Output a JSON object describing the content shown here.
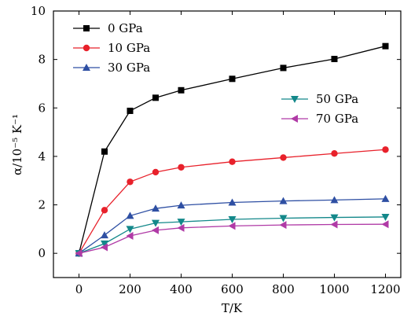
{
  "chart_data": {
    "type": "line",
    "xlabel": "T/K",
    "ylabel": "α/10⁻⁵ K⁻¹",
    "xlim": [
      -100,
      1260
    ],
    "ylim": [
      -1,
      10
    ],
    "xticks": [
      0,
      200,
      400,
      600,
      800,
      1000,
      1200
    ],
    "yticks": [
      0,
      2,
      4,
      6,
      8,
      10
    ],
    "grid": false,
    "series": [
      {
        "name": "0 GPa",
        "color": "#000000",
        "marker": "square",
        "x": [
          0,
          100,
          200,
          300,
          400,
          600,
          800,
          1000,
          1200
        ],
        "y": [
          0.0,
          4.2,
          5.88,
          6.42,
          6.73,
          7.2,
          7.65,
          8.02,
          8.55
        ]
      },
      {
        "name": "10 GPa",
        "color": "#e8212b",
        "marker": "circle",
        "x": [
          0,
          100,
          200,
          300,
          400,
          600,
          800,
          1000,
          1200
        ],
        "y": [
          0.0,
          1.78,
          2.95,
          3.35,
          3.55,
          3.78,
          3.95,
          4.12,
          4.28
        ]
      },
      {
        "name": "30 GPa",
        "color": "#2e4fa3",
        "marker": "triangle-up",
        "x": [
          0,
          100,
          200,
          300,
          400,
          600,
          800,
          1000,
          1200
        ],
        "y": [
          0.0,
          0.75,
          1.55,
          1.85,
          1.98,
          2.1,
          2.16,
          2.2,
          2.25
        ]
      },
      {
        "name": "50 GPa",
        "color": "#13888a",
        "marker": "triangle-down",
        "x": [
          0,
          100,
          200,
          300,
          400,
          600,
          800,
          1000,
          1200
        ],
        "y": [
          0.0,
          0.4,
          1.0,
          1.25,
          1.3,
          1.4,
          1.45,
          1.48,
          1.5
        ]
      },
      {
        "name": "70 GPa",
        "color": "#b03aa6",
        "marker": "triangle-left",
        "x": [
          0,
          100,
          200,
          300,
          400,
          600,
          800,
          1000,
          1200
        ],
        "y": [
          0.0,
          0.25,
          0.72,
          0.95,
          1.05,
          1.13,
          1.17,
          1.19,
          1.2
        ]
      }
    ],
    "legend": [
      {
        "group": "upper-left",
        "series": [
          0,
          1,
          2
        ]
      },
      {
        "group": "right",
        "series": [
          3,
          4
        ]
      }
    ]
  }
}
